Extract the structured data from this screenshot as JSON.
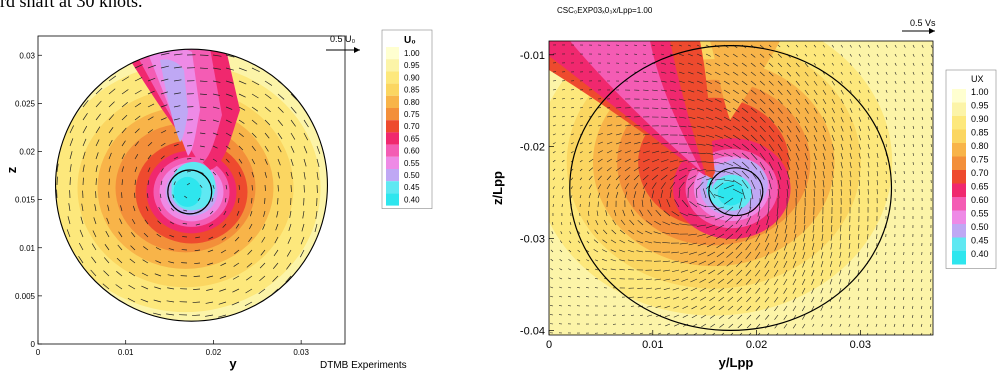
{
  "caption": "rd shaft at 30 knots.",
  "chart_data": [
    {
      "type": "heatmap",
      "title": "",
      "xlabel": "y",
      "ylabel": "z",
      "xlim": [
        0,
        0.035
      ],
      "ylim": [
        0,
        0.032
      ],
      "x_ticks": [
        "0",
        "0.01",
        "0.02",
        "0.03"
      ],
      "y_ticks": [
        "0",
        "0.005",
        "0.01",
        "0.015",
        "0.02",
        "0.025",
        "0.03"
      ],
      "vector_reference": "0.5 U₀",
      "colorbar_title": "U₀",
      "colorbar_levels": [
        "1.00",
        "0.95",
        "0.90",
        "0.85",
        "0.80",
        "0.75",
        "0.70",
        "0.65",
        "0.60",
        "0.55",
        "0.50",
        "0.45",
        "0.40"
      ],
      "annotation": "DTMB Experiments",
      "domain_circle": {
        "center": [
          0.0175,
          0.0165
        ],
        "radius": 0.0155
      },
      "hub_circle": {
        "center": [
          0.0173,
          0.0158
        ],
        "radius": 0.0025
      },
      "wake_min_center": [
        0.0175,
        0.0158
      ],
      "wake_min_value": 0.4
    },
    {
      "type": "heatmap",
      "title": "CSC₀EXP03ₓ0₃x/Lpp=1.00",
      "xlabel": "y/Lpp",
      "ylabel": "z/Lpp",
      "xlim": [
        0,
        0.037
      ],
      "ylim": [
        -0.0405,
        -0.0085
      ],
      "x_ticks": [
        "0",
        "0.01",
        "0.02",
        "0.03"
      ],
      "y_ticks": [
        "-0.01",
        "-0.02",
        "-0.03",
        "-0.04"
      ],
      "vector_reference": "0.5 Vs",
      "colorbar_title": "UX",
      "colorbar_levels": [
        "1.00",
        "0.95",
        "0.90",
        "0.85",
        "0.80",
        "0.75",
        "0.70",
        "0.65",
        "0.60",
        "0.55",
        "0.50",
        "0.45",
        "0.40"
      ],
      "domain_circle": {
        "center": [
          0.0175,
          -0.0245
        ],
        "radius": 0.0155
      },
      "hub_circle": {
        "center": [
          0.018,
          -0.0249
        ],
        "radius": 0.0026
      },
      "wake_min_center": [
        0.0178,
        -0.025
      ],
      "wake_min_value": 0.4
    }
  ],
  "colors": [
    "#ffffd0",
    "#fcf4a8",
    "#fde87c",
    "#fbd661",
    "#f8b449",
    "#f38f3a",
    "#ee4a2e",
    "#f0286e",
    "#f45cb4",
    "#ee8ae6",
    "#bfa8f4",
    "#5fe8f2",
    "#2ee6ee"
  ]
}
